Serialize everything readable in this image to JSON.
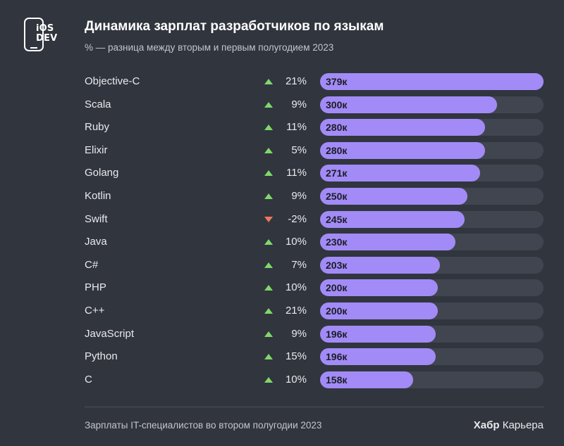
{
  "logo": {
    "line1": "iOS",
    "line2": "DEV"
  },
  "header": {
    "title": "Динамика зарплат разработчиков по языкам",
    "subtitle": "% — разница между вторым и первым полугодием 2023"
  },
  "chart_data": {
    "type": "bar",
    "orientation": "horizontal",
    "title": "Динамика зарплат разработчиков по языкам",
    "subtitle": "% — разница между вторым и первым полугодием 2023",
    "xlim": [
      0,
      379
    ],
    "grid": false,
    "colors": {
      "bar": "#a28bf7",
      "track": "#41454f",
      "up": "#7fd86a",
      "down": "#f1765a"
    },
    "rows": [
      {
        "category": "Objective-C",
        "value": 379,
        "label": "379к",
        "change": "21%",
        "direction": "up"
      },
      {
        "category": "Scala",
        "value": 300,
        "label": "300к",
        "change": "9%",
        "direction": "up"
      },
      {
        "category": "Ruby",
        "value": 280,
        "label": "280к",
        "change": "11%",
        "direction": "up"
      },
      {
        "category": "Elixir",
        "value": 280,
        "label": "280к",
        "change": "5%",
        "direction": "up"
      },
      {
        "category": "Golang",
        "value": 271,
        "label": "271к",
        "change": "11%",
        "direction": "up"
      },
      {
        "category": "Kotlin",
        "value": 250,
        "label": "250к",
        "change": "9%",
        "direction": "up"
      },
      {
        "category": "Swift",
        "value": 245,
        "label": "245к",
        "change": "-2%",
        "direction": "down"
      },
      {
        "category": "Java",
        "value": 230,
        "label": "230к",
        "change": "10%",
        "direction": "up"
      },
      {
        "category": "C#",
        "value": 203,
        "label": "203к",
        "change": "7%",
        "direction": "up"
      },
      {
        "category": "PHP",
        "value": 200,
        "label": "200к",
        "change": "10%",
        "direction": "up"
      },
      {
        "category": "C++",
        "value": 200,
        "label": "200к",
        "change": "21%",
        "direction": "up"
      },
      {
        "category": "JavaScript",
        "value": 196,
        "label": "196к",
        "change": "9%",
        "direction": "up"
      },
      {
        "category": "Python",
        "value": 196,
        "label": "196к",
        "change": "15%",
        "direction": "up"
      },
      {
        "category": "C",
        "value": 158,
        "label": "158к",
        "change": "10%",
        "direction": "up"
      }
    ]
  },
  "footer": {
    "note": "Зарплаты IT-специалистов во втором полугодии 2023",
    "brand_bold": "Хабр",
    "brand_rest": " Карьера"
  }
}
